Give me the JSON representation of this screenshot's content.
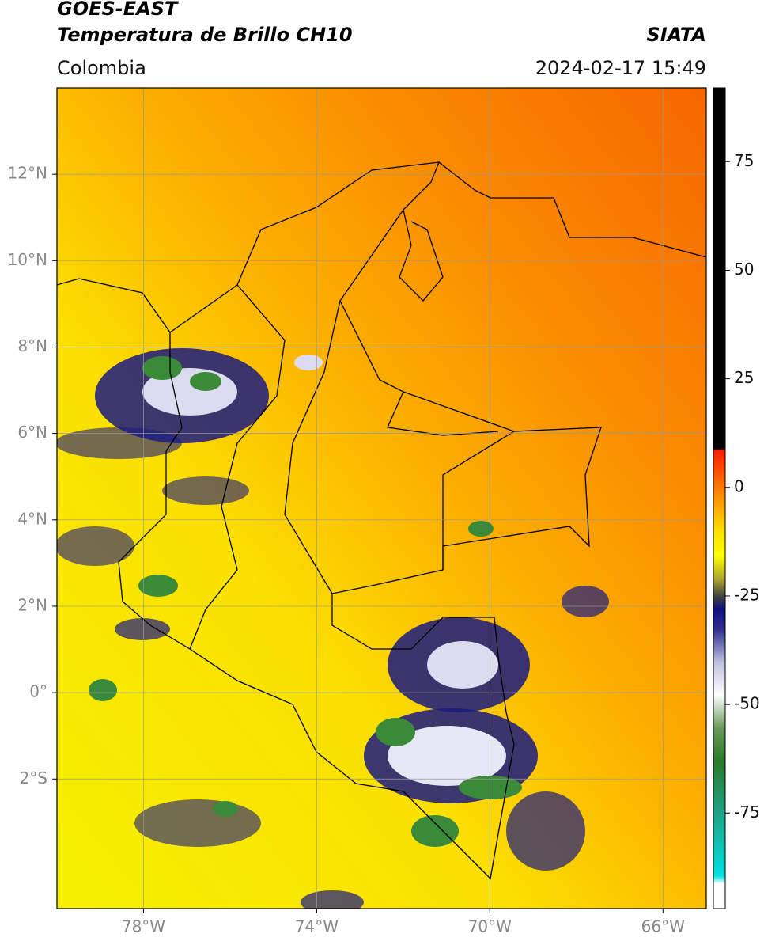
{
  "header": {
    "title": "GOES-EAST",
    "subtitle": "Temperatura de Brillo CH10",
    "region": "Colombia",
    "source": "SIATA",
    "timestamp": "2024-02-17 15:49"
  },
  "map": {
    "xlim": [
      -80,
      -65
    ],
    "ylim": [
      -5,
      14
    ],
    "xticks": [
      {
        "value": -78,
        "label": "78°W"
      },
      {
        "value": -74,
        "label": "74°W"
      },
      {
        "value": -70,
        "label": "70°W"
      },
      {
        "value": -66,
        "label": "66°W"
      }
    ],
    "yticks": [
      {
        "value": 12,
        "label": "12°N"
      },
      {
        "value": 10,
        "label": "10°N"
      },
      {
        "value": 8,
        "label": "8°N"
      },
      {
        "value": 6,
        "label": "6°N"
      },
      {
        "value": 4,
        "label": "4°N"
      },
      {
        "value": 2,
        "label": "2°N"
      },
      {
        "value": 0,
        "label": "0°"
      },
      {
        "value": -2,
        "label": "2°S"
      }
    ],
    "grid": true
  },
  "colorbar": {
    "lim": [
      -97,
      92
    ],
    "ticks": [
      75,
      50,
      25,
      0,
      -25,
      -50,
      -75
    ]
  }
}
